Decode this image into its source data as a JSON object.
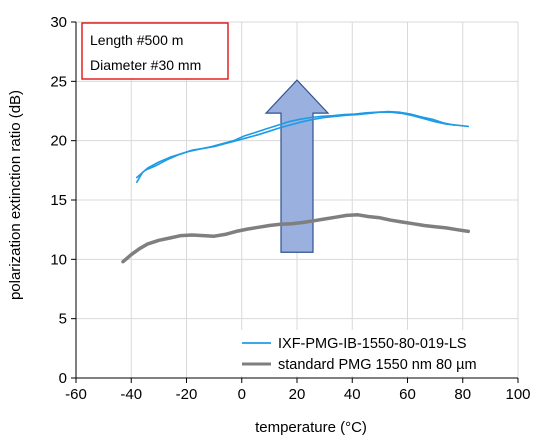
{
  "chart_data": {
    "type": "line",
    "xlabel": "temperature (°C)",
    "ylabel": "polarization extinction ratio (dB)",
    "xlim": [
      -60,
      100
    ],
    "ylim": [
      0,
      30
    ],
    "xticks": [
      -60,
      -40,
      -20,
      0,
      20,
      40,
      60,
      80,
      100
    ],
    "yticks": [
      0,
      5,
      10,
      15,
      20,
      25,
      30
    ],
    "grid": true,
    "legend_position": "bottom-right",
    "annotation_box": {
      "lines": [
        "Length #500 m",
        "Diameter #30 mm"
      ],
      "border_color": "#e00000",
      "position": "top-left"
    },
    "arrow": {
      "direction": "up",
      "x_center": 20,
      "y_start": 10.6,
      "y_end": 25.1,
      "fill_color": "#9ab0de",
      "stroke_color": "#2f528f"
    },
    "series": [
      {
        "name": "IXF-PMG-IB-1550-80-019-LS",
        "color": "#1e9be6",
        "x": [
          -38,
          -36,
          -34,
          -30,
          -26,
          -22,
          -18,
          -14,
          -10,
          -6,
          -2,
          2,
          6,
          10,
          14,
          18,
          22,
          26,
          30,
          34,
          38,
          42,
          46,
          50,
          54,
          58,
          62,
          66,
          70,
          74,
          78,
          82
        ],
        "values": [
          16.5,
          17.3,
          17.7,
          18.2,
          18.6,
          18.9,
          19.2,
          19.35,
          19.5,
          19.75,
          20.0,
          20.25,
          20.5,
          20.8,
          21.1,
          21.35,
          21.6,
          21.8,
          21.95,
          22.05,
          22.15,
          22.2,
          22.3,
          22.4,
          22.4,
          22.3,
          22.1,
          21.85,
          21.6,
          21.4,
          21.3,
          21.2
        ]
      },
      {
        "name": "",
        "color": "#1e9be6",
        "x": [
          -38,
          -35,
          -31,
          -27,
          -23,
          -19,
          -15,
          -11,
          -7,
          -3,
          1,
          5,
          9,
          13,
          17,
          21,
          25,
          29,
          33,
          37,
          41,
          45,
          49,
          53,
          57,
          61,
          65,
          69,
          73,
          77
        ],
        "values": [
          16.9,
          17.5,
          17.9,
          18.4,
          18.8,
          19.1,
          19.3,
          19.5,
          19.75,
          20.0,
          20.4,
          20.7,
          21.0,
          21.3,
          21.6,
          21.8,
          21.95,
          22.05,
          22.1,
          22.2,
          22.25,
          22.35,
          22.4,
          22.45,
          22.4,
          22.25,
          22.0,
          21.8,
          21.5,
          21.3
        ]
      },
      {
        "name": "standard PMG 1550 nm 80 µm",
        "color": "#7f7f7f",
        "x": [
          -43,
          -40,
          -37,
          -34,
          -30,
          -26,
          -22,
          -18,
          -14,
          -10,
          -6,
          -2,
          2,
          6,
          10,
          14,
          18,
          22,
          26,
          30,
          34,
          38,
          42,
          46,
          50,
          54,
          58,
          62,
          66,
          70,
          74,
          78,
          82
        ],
        "values": [
          9.8,
          10.4,
          10.9,
          11.3,
          11.6,
          11.8,
          12.0,
          12.05,
          12.0,
          11.95,
          12.1,
          12.35,
          12.55,
          12.7,
          12.85,
          12.95,
          13.0,
          13.1,
          13.25,
          13.4,
          13.55,
          13.7,
          13.75,
          13.6,
          13.5,
          13.3,
          13.15,
          13.0,
          12.85,
          12.75,
          12.65,
          12.5,
          12.35
        ]
      }
    ]
  }
}
